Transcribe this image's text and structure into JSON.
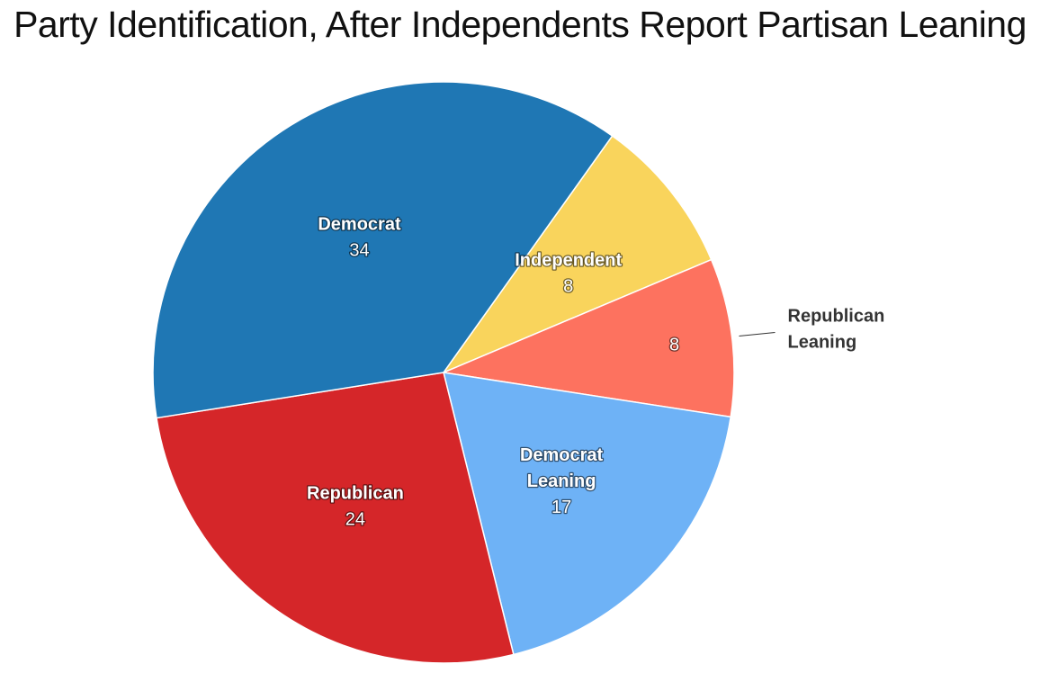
{
  "chart_data": {
    "type": "pie",
    "title": "Party Identification, After Independents Report Partisan Leaning",
    "categories": [
      "Independent",
      "Republican Leaning",
      "Democrat Leaning",
      "Republican",
      "Democrat"
    ],
    "values": [
      8,
      8,
      17,
      24,
      34
    ],
    "colors": [
      "#f9d45c",
      "#fd725f",
      "#6eb2f6",
      "#d52629",
      "#1f77b4"
    ],
    "label_lines": [
      [
        "Independent"
      ],
      [
        "Republican",
        "Leaning"
      ],
      [
        "Democrat",
        "Leaning"
      ],
      [
        "Republican"
      ],
      [
        "Democrat"
      ]
    ],
    "outside_label": "Republican Leaning",
    "legend": "none"
  }
}
